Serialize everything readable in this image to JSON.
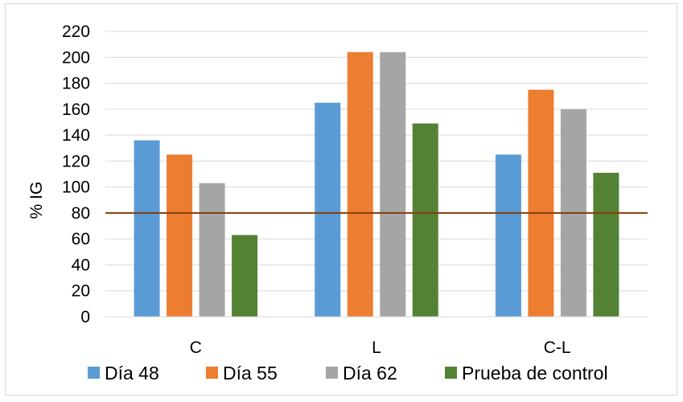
{
  "chart_data": {
    "type": "bar",
    "title": "",
    "xlabel": "",
    "ylabel": "% IG",
    "categories": [
      "C",
      "L",
      "C-L"
    ],
    "series": [
      {
        "name": "Día 48",
        "color": "#5b9bd5",
        "values": [
          136,
          165,
          125
        ]
      },
      {
        "name": "Día 55",
        "color": "#ed7d31",
        "values": [
          125,
          204,
          175
        ]
      },
      {
        "name": "Día 62",
        "color": "#a5a5a5",
        "values": [
          103,
          204,
          160
        ]
      },
      {
        "name": "Prueba de control",
        "color": "#548235",
        "values": [
          63,
          149,
          111
        ]
      }
    ],
    "ylim": [
      0,
      220
    ],
    "yticks": [
      0,
      20,
      40,
      60,
      80,
      100,
      120,
      140,
      160,
      180,
      200,
      220
    ],
    "reference_line": {
      "value": 80,
      "color": "#843c0c"
    },
    "grid": true,
    "gridline_color": "#d9d9d9",
    "legend_position": "bottom"
  }
}
